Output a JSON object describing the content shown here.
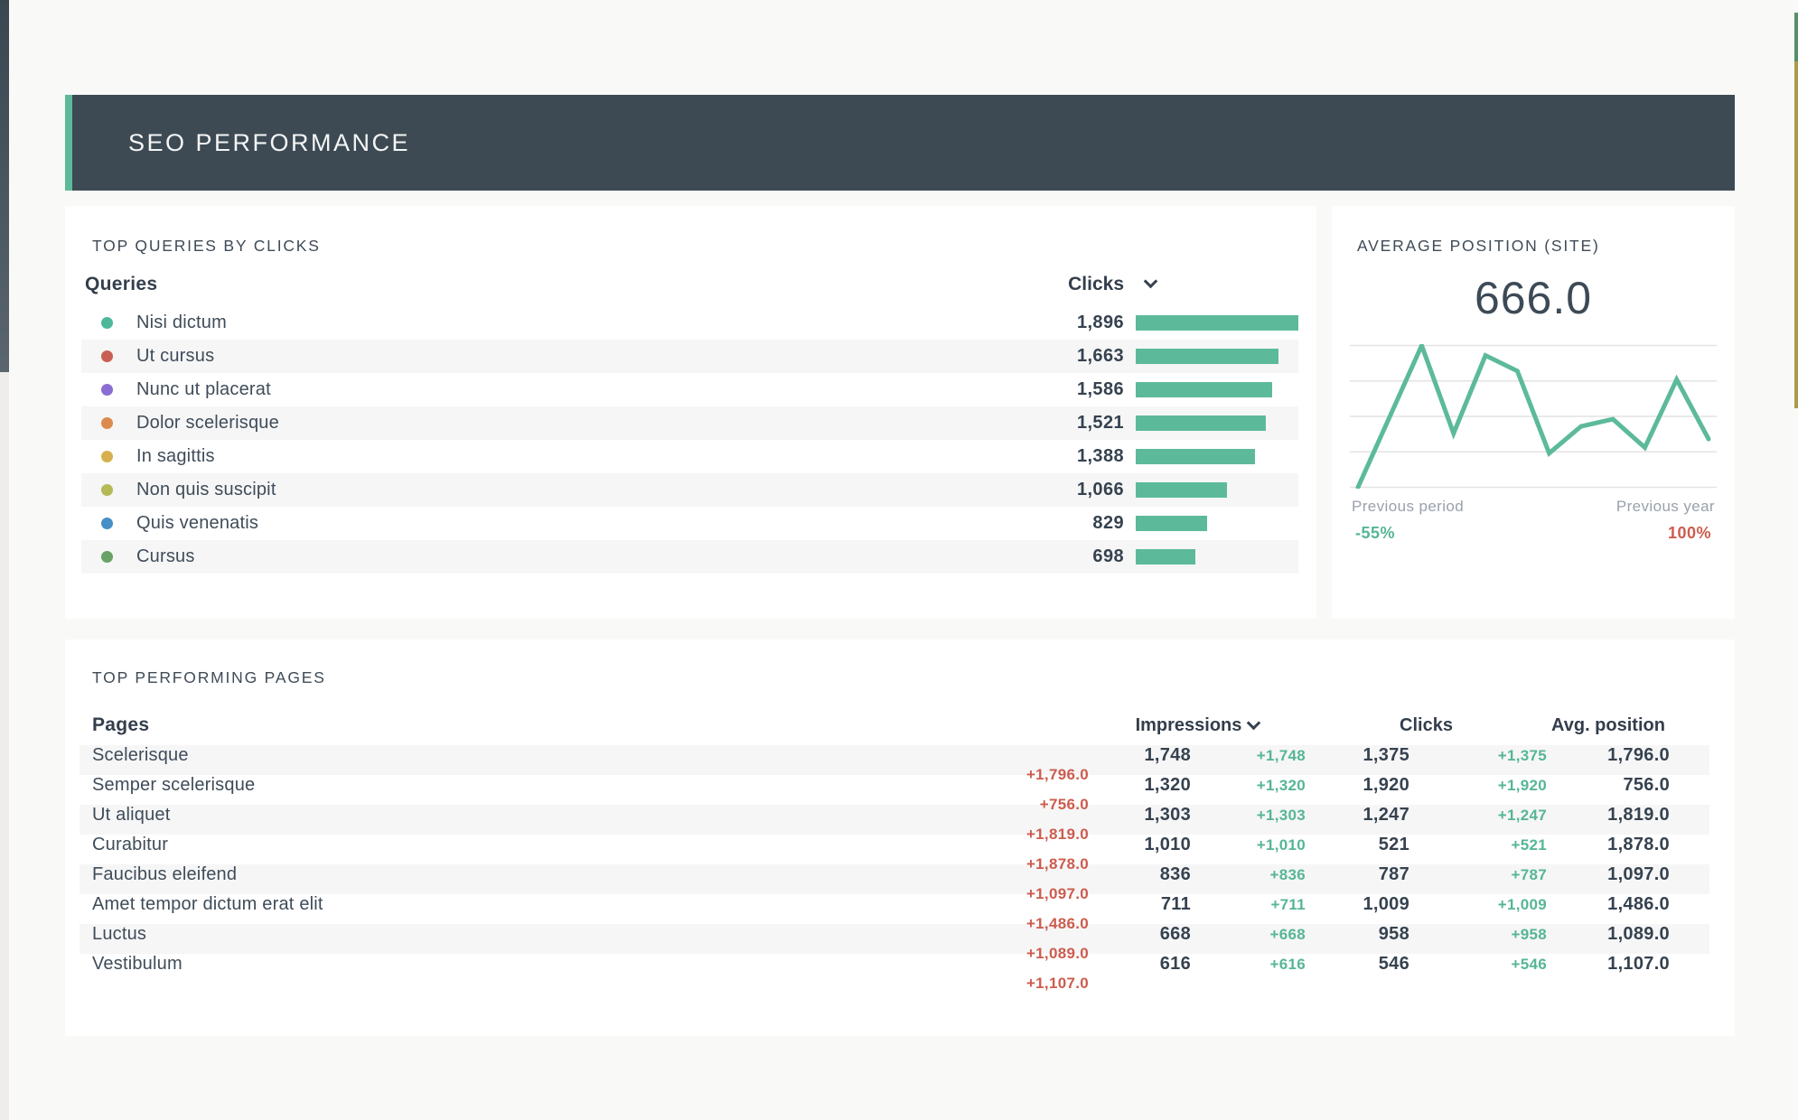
{
  "header": {
    "title": "SEO PERFORMANCE",
    "bg_color": "#3d4a53",
    "accent_color": "#5eb998"
  },
  "queries_panel": {
    "title": "TOP QUERIES BY CLICKS",
    "columns": {
      "label": "Queries",
      "value": "Clicks"
    },
    "bar_color": "#5cba9b",
    "rows": [
      {
        "label": "Nisi dictum",
        "dot_color": "#4db79a",
        "clicks_display": "1,896",
        "clicks": 1896
      },
      {
        "label": "Ut cursus",
        "dot_color": "#c95f53",
        "clicks_display": "1,663",
        "clicks": 1663
      },
      {
        "label": "Nunc ut placerat",
        "dot_color": "#8b6ed2",
        "clicks_display": "1,586",
        "clicks": 1586
      },
      {
        "label": "Dolor scelerisque",
        "dot_color": "#db8b4d",
        "clicks_display": "1,521",
        "clicks": 1521
      },
      {
        "label": "In sagittis",
        "dot_color": "#d6b04c",
        "clicks_display": "1,388",
        "clicks": 1388
      },
      {
        "label": "Non quis suscipit",
        "dot_color": "#b4ba55",
        "clicks_display": "1,066",
        "clicks": 1066
      },
      {
        "label": "Quis venenatis",
        "dot_color": "#478fc6",
        "clicks_display": "829",
        "clicks": 829
      },
      {
        "label": "Cursus",
        "dot_color": "#69a266",
        "clicks_display": "698",
        "clicks": 698
      }
    ]
  },
  "avg_panel": {
    "title": "AVERAGE POSITION (SITE)",
    "value": "666.0",
    "line_color": "#5cba9b",
    "grid_color": "#e3e3e3",
    "points": [
      0,
      50,
      100,
      38,
      93,
      82,
      24,
      43,
      48,
      28,
      76,
      34
    ],
    "prev_period": {
      "label": "Previous period",
      "delta": "-55%",
      "color": "#56b694"
    },
    "prev_year": {
      "label": "Previous year",
      "delta": "100%",
      "color": "#cd5c4d"
    }
  },
  "pages_panel": {
    "title": "TOP PERFORMING PAGES",
    "columns": {
      "pages": "Pages",
      "impressions": "Impressions",
      "clicks": "Clicks",
      "avg_position": "Avg. position"
    },
    "delta_up_color": "#56b694",
    "delta_down_color": "#cd5c4d",
    "rows": [
      {
        "page": "Scelerisque",
        "impressions": "1,748",
        "impressions_delta": "+1,748",
        "clicks": "1,375",
        "clicks_delta": "+1,375",
        "avg_position": "1,796.0",
        "avg_position_delta": "+1,796.0"
      },
      {
        "page": "Semper scelerisque",
        "impressions": "1,320",
        "impressions_delta": "+1,320",
        "clicks": "1,920",
        "clicks_delta": "+1,920",
        "avg_position": "756.0",
        "avg_position_delta": "+756.0"
      },
      {
        "page": "Ut aliquet",
        "impressions": "1,303",
        "impressions_delta": "+1,303",
        "clicks": "1,247",
        "clicks_delta": "+1,247",
        "avg_position": "1,819.0",
        "avg_position_delta": "+1,819.0"
      },
      {
        "page": "Curabitur",
        "impressions": "1,010",
        "impressions_delta": "+1,010",
        "clicks": "521",
        "clicks_delta": "+521",
        "avg_position": "1,878.0",
        "avg_position_delta": "+1,878.0"
      },
      {
        "page": "Faucibus eleifend",
        "impressions": "836",
        "impressions_delta": "+836",
        "clicks": "787",
        "clicks_delta": "+787",
        "avg_position": "1,097.0",
        "avg_position_delta": "+1,097.0"
      },
      {
        "page": "Amet tempor dictum erat elit",
        "impressions": "711",
        "impressions_delta": "+711",
        "clicks": "1,009",
        "clicks_delta": "+1,009",
        "avg_position": "1,486.0",
        "avg_position_delta": "+1,486.0"
      },
      {
        "page": "Luctus",
        "impressions": "668",
        "impressions_delta": "+668",
        "clicks": "958",
        "clicks_delta": "+958",
        "avg_position": "1,089.0",
        "avg_position_delta": "+1,089.0"
      },
      {
        "page": "Vestibulum",
        "impressions": "616",
        "impressions_delta": "+616",
        "clicks": "546",
        "clicks_delta": "+546",
        "avg_position": "1,107.0",
        "avg_position_delta": "+1,107.0"
      }
    ]
  },
  "chart_data": [
    {
      "type": "bar",
      "orientation": "horizontal",
      "title": "TOP QUERIES BY CLICKS",
      "categories": [
        "Nisi dictum",
        "Ut cursus",
        "Nunc ut placerat",
        "Dolor scelerisque",
        "In sagittis",
        "Non quis suscipit",
        "Quis venenatis",
        "Cursus"
      ],
      "values": [
        1896,
        1663,
        1586,
        1521,
        1388,
        1066,
        829,
        698
      ],
      "series_label": "Clicks",
      "bar_color": "#5cba9b",
      "xlim": [
        0,
        1896
      ],
      "grid": false
    },
    {
      "type": "line",
      "title": "AVERAGE POSITION (SITE)",
      "current_value": 666.0,
      "x": [
        0,
        1,
        2,
        3,
        4,
        5,
        6,
        7,
        8,
        9,
        10,
        11
      ],
      "values": [
        0,
        50,
        100,
        38,
        93,
        82,
        24,
        43,
        48,
        28,
        76,
        34
      ],
      "ylim": [
        0,
        100
      ],
      "grid": "horizontal-only",
      "line_color": "#5cba9b",
      "annotations": [
        {
          "label": "Previous period",
          "value": "-55%"
        },
        {
          "label": "Previous year",
          "value": "100%"
        }
      ]
    }
  ]
}
